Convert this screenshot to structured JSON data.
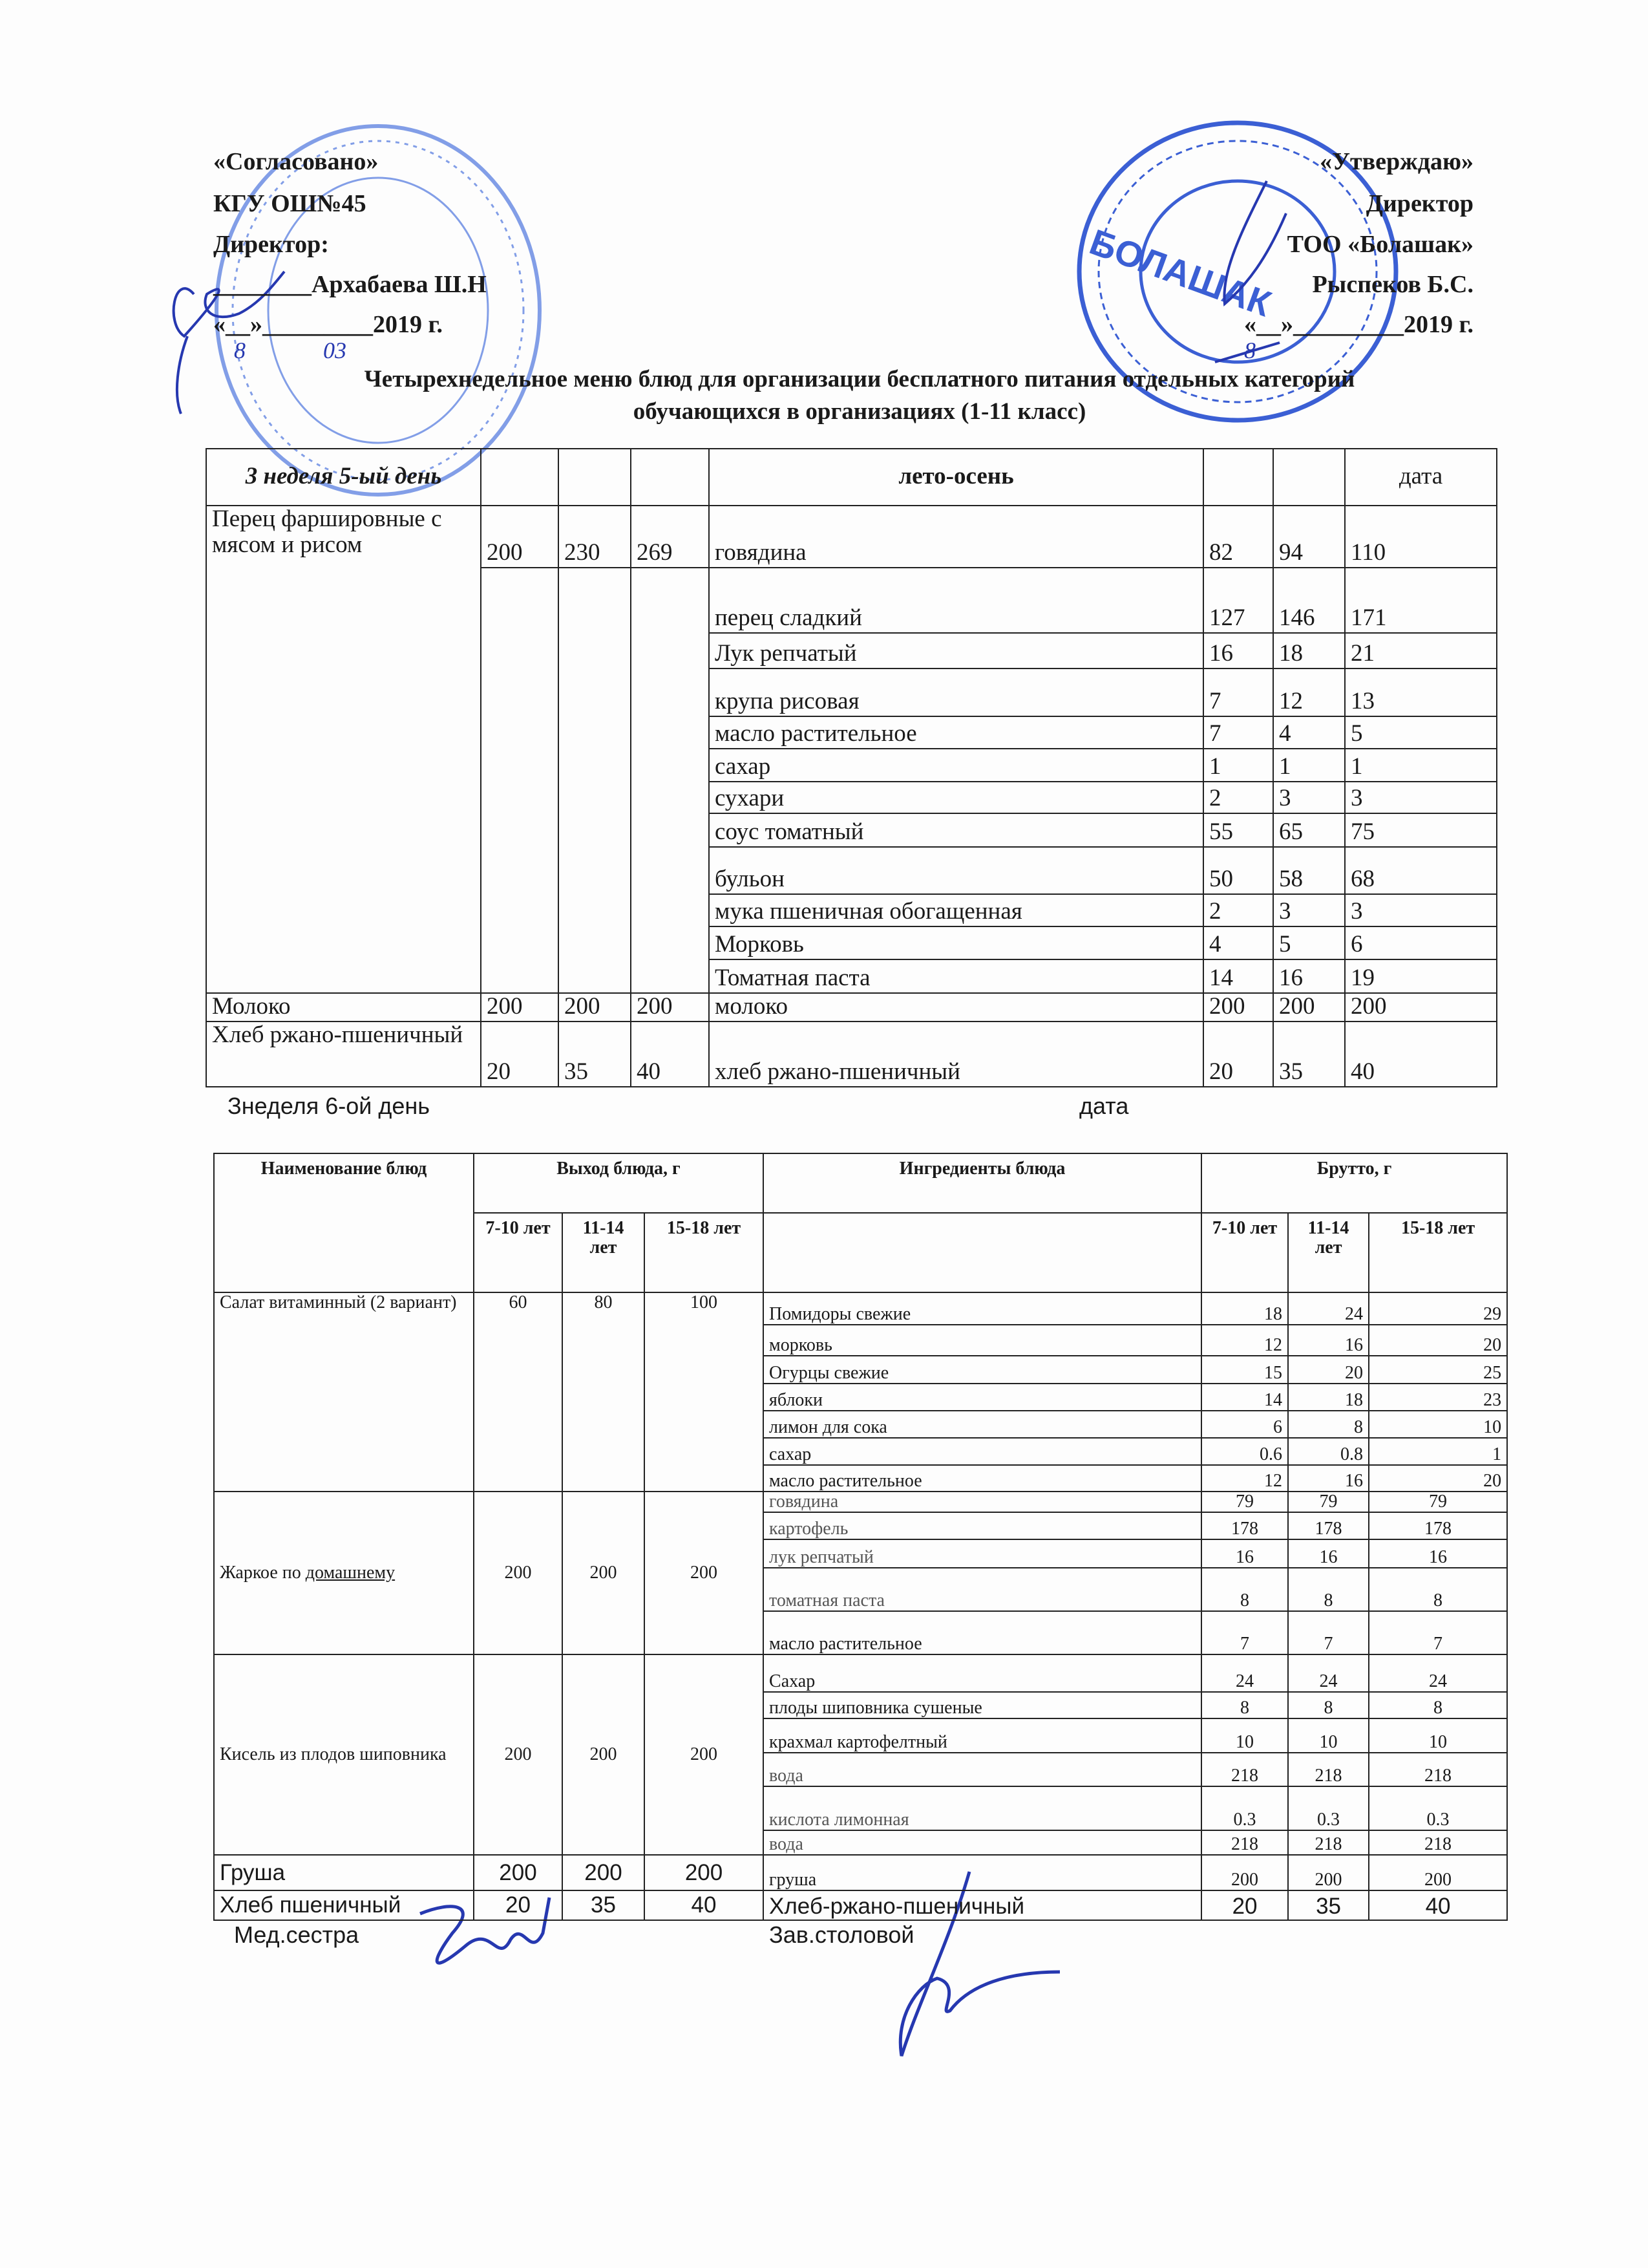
{
  "approval_left": {
    "line1": "«Согласовано»",
    "line2": "КГУ ОШ№45",
    "line3": "Директор:",
    "line4": "________Архабаева Ш.Н",
    "line5": "«__»_________2019 г.",
    "handwritten_day": "8",
    "handwritten_month": "03"
  },
  "approval_right": {
    "line1": "«Утверждаю»",
    "line2": "Директор",
    "line3": "ТОО «Болашак»",
    "line4": "Рыспеков Б.С.",
    "line5": "«__»_________2019 г.",
    "handwritten_day": "8"
  },
  "stamp_right_text": "БОЛАШАК",
  "title": {
    "line1": "Четырехнедельное меню блюд для организации бесплатного питания отдельных категорий",
    "line2": "обучающихся в организациях (1-11 класс)"
  },
  "table1": {
    "header": {
      "day": "3 неделя 5-ый день",
      "season": "лето-осень",
      "date": "дата"
    },
    "dishes": [
      {
        "name": "Перец фаршировные с мясом и рисом",
        "yields": [
          "200",
          "230",
          "269"
        ],
        "ingredients": [
          {
            "name": "говядина",
            "values": [
              "82",
              "94",
              "110"
            ]
          },
          {
            "name": "перец сладкий",
            "values": [
              "127",
              "146",
              "171"
            ]
          },
          {
            "name": "Лук репчатый",
            "values": [
              "16",
              "18",
              "21"
            ]
          },
          {
            "name": "крупа рисовая",
            "values": [
              "7",
              "12",
              "13"
            ]
          },
          {
            "name": "масло растительное",
            "values": [
              "7",
              "4",
              "5"
            ]
          },
          {
            "name": "сахар",
            "values": [
              "1",
              "1",
              "1"
            ]
          },
          {
            "name": "сухари",
            "values": [
              "2",
              "3",
              "3"
            ]
          },
          {
            "name": "соус томатный",
            "values": [
              "55",
              "65",
              "75"
            ]
          },
          {
            "name": "бульон",
            "values": [
              "50",
              "58",
              "68"
            ]
          },
          {
            "name": "мука пшеничная обогащенная",
            "values": [
              "2",
              "3",
              "3"
            ]
          },
          {
            "name": "Морковь",
            "values": [
              "4",
              "5",
              "6"
            ]
          },
          {
            "name": "Томатная паста",
            "values": [
              "14",
              "16",
              "19"
            ]
          }
        ]
      },
      {
        "name": "Молоко",
        "yields": [
          "200",
          "200",
          "200"
        ],
        "ingredients": [
          {
            "name": "молоко",
            "values": [
              "200",
              "200",
              "200"
            ]
          }
        ]
      },
      {
        "name": "Хлеб ржано-пшеничный",
        "yields": [
          "20",
          "35",
          "40"
        ],
        "ingredients": [
          {
            "name": "хлеб ржано-пшеничный",
            "values": [
              "20",
              "35",
              "40"
            ]
          }
        ]
      }
    ]
  },
  "between": {
    "day": "Знеделя 6-ой день",
    "date": "дата"
  },
  "table2": {
    "header": {
      "dish": "Наименование блюд",
      "yield": "Выход блюда, г",
      "ingredients": "Ингредиенты блюда",
      "brutto": "Брутто, г",
      "ages": [
        "7-10 лет",
        "11-14 лет",
        "15-18 лет"
      ],
      "brutto_ages": [
        "7-10 лет",
        "11-14 лет",
        "15-18 лет"
      ]
    },
    "dishes": [
      {
        "name": "Салат витаминный (2 вариант)",
        "yields": [
          "60",
          "80",
          "100"
        ],
        "ingredients": [
          {
            "name": "Помидоры свежие",
            "values": [
              "18",
              "24",
              "29"
            ]
          },
          {
            "name": "морковь",
            "values": [
              "12",
              "16",
              "20"
            ]
          },
          {
            "name": "Огурцы свежие",
            "values": [
              "15",
              "20",
              "25"
            ]
          },
          {
            "name": "яблоки",
            "values": [
              "14",
              "18",
              "23"
            ]
          },
          {
            "name": "лимон для сока",
            "values": [
              "6",
              "8",
              "10"
            ]
          },
          {
            "name": "сахар",
            "values": [
              "0.6",
              "0.8",
              "1"
            ]
          },
          {
            "name": "масло растительное",
            "values": [
              "12",
              "16",
              "20"
            ]
          }
        ]
      },
      {
        "name": "Жаркое по домашнему",
        "yields": [
          "200",
          "200",
          "200"
        ],
        "ingredients": [
          {
            "name": "говядина",
            "values": [
              "79",
              "79",
              "79"
            ]
          },
          {
            "name": "картофель",
            "values": [
              "178",
              "178",
              "178"
            ]
          },
          {
            "name": "лук репчатый",
            "values": [
              "16",
              "16",
              "16"
            ]
          },
          {
            "name": "томатная паста",
            "values": [
              "8",
              "8",
              "8"
            ]
          },
          {
            "name": "масло растительное",
            "values": [
              "7",
              "7",
              "7"
            ]
          }
        ]
      },
      {
        "name": "Кисель из плодов шиповника",
        "yields": [
          "200",
          "200",
          "200"
        ],
        "ingredients": [
          {
            "name": "Сахар",
            "values": [
              "24",
              "24",
              "24"
            ]
          },
          {
            "name": "плоды шиповника сушеные",
            "values": [
              "8",
              "8",
              "8"
            ]
          },
          {
            "name": "крахмал картофелтный",
            "values": [
              "10",
              "10",
              "10"
            ]
          },
          {
            "name": "вода",
            "values": [
              "218",
              "218",
              "218"
            ]
          },
          {
            "name": "кислота лимонная",
            "values": [
              "0.3",
              "0.3",
              "0.3"
            ]
          },
          {
            "name": "вода",
            "values": [
              "218",
              "218",
              "218"
            ]
          }
        ]
      },
      {
        "name": "Груша",
        "yields": [
          "200",
          "200",
          "200"
        ],
        "ingredients": [
          {
            "name": "груша",
            "values": [
              "200",
              "200",
              "200"
            ]
          }
        ]
      },
      {
        "name": "Хлеб пшеничный",
        "yields": [
          "20",
          "35",
          "40"
        ],
        "ingredients": [
          {
            "name": "Хлеб-ржано-пшеничный",
            "values": [
              "20",
              "35",
              "40"
            ]
          }
        ]
      }
    ]
  },
  "footer": {
    "nurse": "Мед.сестра",
    "canteen_head": "Зав.столовой"
  },
  "colors": {
    "ink": "#1a1a1a",
    "stamp_blue": "#3b5fd4",
    "signature_blue": "#2638b0"
  }
}
